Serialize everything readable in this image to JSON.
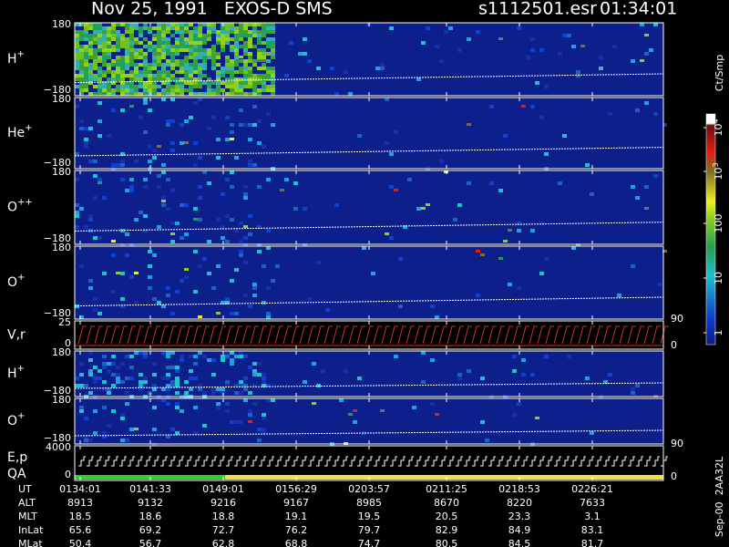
{
  "header": {
    "title": "Nov 25, 1991   EXOS-D SMS",
    "file": "s1112501.esr",
    "time": "01:34:01"
  },
  "panels": [
    {
      "label": "H",
      "sup": "+",
      "ticks": [
        "180",
        "−180"
      ]
    },
    {
      "label": "He",
      "sup": "+",
      "ticks": [
        "180",
        "−180"
      ]
    },
    {
      "label": "O",
      "sup": "++",
      "ticks": [
        "180",
        "−180"
      ]
    },
    {
      "label": "O",
      "sup": "+",
      "ticks": [
        "180",
        "−180"
      ]
    },
    {
      "label": "V,r",
      "ticks": [
        "25",
        "0"
      ],
      "right_ticks": [
        "90",
        "0"
      ]
    },
    {
      "label": "H",
      "sup": "+",
      "ticks": [
        "180",
        "−180"
      ]
    },
    {
      "label": "O",
      "sup": "+",
      "ticks": [
        "180",
        "−180"
      ]
    },
    {
      "label": "E,p",
      "label2": "QA",
      "ticks": [
        "4000",
        "0"
      ],
      "right_ticks": [
        "90",
        "0"
      ]
    }
  ],
  "colorbar": {
    "label": "Ct/Smp",
    "ticks": [
      {
        "base": "10",
        "exp": "4"
      },
      {
        "base": "10",
        "exp": "3"
      },
      {
        "base": "100"
      },
      {
        "base": "10"
      },
      {
        "base": "1"
      }
    ]
  },
  "footer_note": "Sep-00  2AA32L",
  "ephemeris": {
    "rows": [
      {
        "label": "UT",
        "values": [
          "0134:01",
          "0141:33",
          "0149:01",
          "0156:29",
          "0203:57",
          "0211:25",
          "0218:53",
          "0226:21"
        ]
      },
      {
        "label": "ALT",
        "values": [
          "8913",
          "9132",
          "9216",
          "9167",
          "8985",
          "8670",
          "8220",
          "7633"
        ]
      },
      {
        "label": "MLT",
        "values": [
          "18.5",
          "18.6",
          "18.8",
          "19.1",
          "19.5",
          "20.5",
          "23.3",
          "3.1"
        ]
      },
      {
        "label": "InLat",
        "values": [
          "65.6",
          "69.2",
          "72.7",
          "76.2",
          "79.7",
          "82.9",
          "84.9",
          "83.1"
        ]
      },
      {
        "label": "MLat",
        "values": [
          "50.4",
          "56.7",
          "62.8",
          "68.8",
          "74.7",
          "80.5",
          "84.5",
          "81.7"
        ]
      }
    ]
  }
}
